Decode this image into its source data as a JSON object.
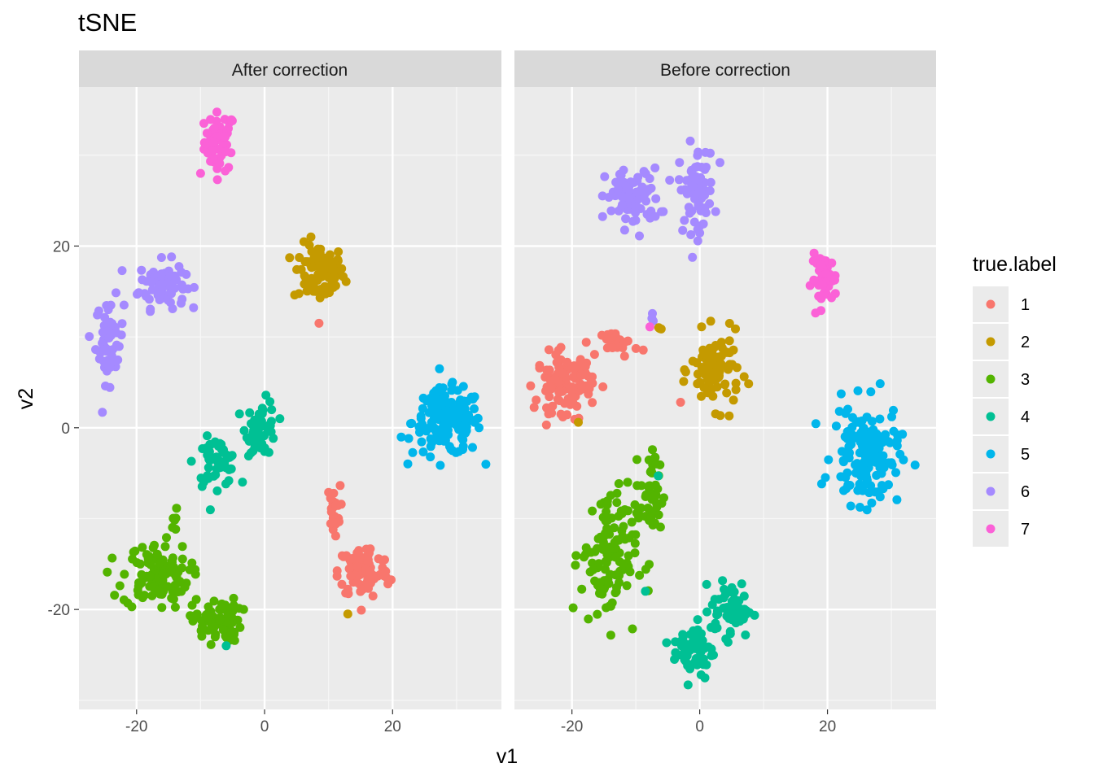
{
  "chart_data": {
    "type": "scatter",
    "title": "tSNE",
    "xlabel": "v1",
    "ylabel": "v2",
    "xlim": [
      -29,
      37
    ],
    "ylim": [
      -31,
      37.5
    ],
    "xticks": [
      -20,
      0,
      20
    ],
    "yticks": [
      -20,
      0,
      20
    ],
    "xtick_labels": [
      "-20",
      "0",
      "20"
    ],
    "ytick_labels": [
      "-20",
      "0",
      "20"
    ],
    "grid": true,
    "legend": {
      "title": "true.label",
      "position": "right",
      "entries": [
        {
          "label": "1",
          "color": "#F8766D"
        },
        {
          "label": "2",
          "color": "#C49A00"
        },
        {
          "label": "3",
          "color": "#53B400"
        },
        {
          "label": "4",
          "color": "#00C094"
        },
        {
          "label": "5",
          "color": "#00B6EB"
        },
        {
          "label": "6",
          "color": "#A58AFF"
        },
        {
          "label": "7",
          "color": "#FB61D7"
        }
      ]
    },
    "facets": [
      {
        "name": "After correction",
        "clusters": [
          {
            "label": "7",
            "cx": -7,
            "cy": 31.5,
            "sx": 1.2,
            "sy": 1.6,
            "n": 60
          },
          {
            "label": "7",
            "cx": -10,
            "cy": 28,
            "sx": 0,
            "sy": 0,
            "n": 1
          },
          {
            "label": "2",
            "cx": 8.5,
            "cy": 17,
            "sx": 2,
            "sy": 1.6,
            "n": 90
          },
          {
            "label": "6",
            "cx": -16,
            "cy": 15.8,
            "sx": 1.8,
            "sy": 1.3,
            "n": 75
          },
          {
            "label": "6",
            "cx": -24.2,
            "cy": 9.5,
            "sx": 1.1,
            "sy": 2.3,
            "n": 60
          },
          {
            "label": "5",
            "cx": 28.5,
            "cy": 0.6,
            "sx": 2.7,
            "sy": 1.8,
            "n": 160
          },
          {
            "label": "4",
            "cx": -0.5,
            "cy": 0,
            "sx": 1.2,
            "sy": 1.5,
            "n": 55
          },
          {
            "label": "4",
            "cx": -7.5,
            "cy": -3.8,
            "sx": 1.7,
            "sy": 1.3,
            "n": 55
          },
          {
            "label": "1",
            "cx": 10.8,
            "cy": -9,
            "sx": 0.5,
            "sy": 1.3,
            "n": 25
          },
          {
            "label": "1",
            "cx": 15.5,
            "cy": -15.8,
            "sx": 2,
            "sy": 1.5,
            "n": 90
          },
          {
            "label": "3",
            "cx": -17,
            "cy": -16.3,
            "sx": 2.6,
            "sy": 1.8,
            "n": 110
          },
          {
            "label": "3",
            "cx": -7.5,
            "cy": -21.2,
            "sx": 1.9,
            "sy": 1.2,
            "n": 70
          },
          {
            "label": "3",
            "cx": -14,
            "cy": -11,
            "sx": 0.3,
            "sy": 1,
            "n": 6
          },
          {
            "label": "4",
            "cx": -6,
            "cy": -24,
            "sx": 0,
            "sy": 0,
            "n": 1
          },
          {
            "label": "2",
            "cx": 13,
            "cy": -20.5,
            "sx": 0,
            "sy": 0,
            "n": 1
          },
          {
            "label": "1",
            "cx": 8.5,
            "cy": 11.5,
            "sx": 0,
            "sy": 0,
            "n": 1
          }
        ]
      },
      {
        "name": "Before correction",
        "clusters": [
          {
            "label": "6",
            "cx": -10.5,
            "cy": 25.3,
            "sx": 2.1,
            "sy": 1.6,
            "n": 80
          },
          {
            "label": "6",
            "cx": -0.5,
            "cy": 26.3,
            "sx": 1.4,
            "sy": 2.4,
            "n": 70
          },
          {
            "label": "7",
            "cx": 19.5,
            "cy": 16.3,
            "sx": 1,
            "sy": 1.3,
            "n": 50
          },
          {
            "label": "6",
            "cx": -7.5,
            "cy": 12.2,
            "sx": 0.2,
            "sy": 0.3,
            "n": 3
          },
          {
            "label": "7",
            "cx": -7.8,
            "cy": 11.1,
            "sx": 0,
            "sy": 0,
            "n": 1
          },
          {
            "label": "2",
            "cx": -6,
            "cy": 10.6,
            "sx": 0.3,
            "sy": 0.2,
            "n": 3
          },
          {
            "label": "1",
            "cx": -12.5,
            "cy": 9.3,
            "sx": 1.4,
            "sy": 0.7,
            "n": 25
          },
          {
            "label": "1",
            "cx": -21.2,
            "cy": 5,
            "sx": 2.2,
            "sy": 1.6,
            "n": 110
          },
          {
            "label": "1",
            "cx": -19.2,
            "cy": 1,
            "sx": 0.2,
            "sy": 0.2,
            "n": 2
          },
          {
            "label": "2",
            "cx": -19,
            "cy": 0.6,
            "sx": 0,
            "sy": 0,
            "n": 1
          },
          {
            "label": "1",
            "cx": -3,
            "cy": 2.8,
            "sx": 0,
            "sy": 0,
            "n": 1
          },
          {
            "label": "2",
            "cx": 2.5,
            "cy": 6.3,
            "sx": 1.9,
            "sy": 2,
            "n": 90
          },
          {
            "label": "5",
            "cx": 26,
            "cy": -3,
            "sx": 2.6,
            "sy": 2.7,
            "n": 150
          },
          {
            "label": "3",
            "cx": -14.2,
            "cy": -14,
            "sx": 2.2,
            "sy": 3.8,
            "n": 120
          },
          {
            "label": "3",
            "cx": -7.5,
            "cy": -7.5,
            "sx": 0.9,
            "sy": 2.5,
            "n": 40
          },
          {
            "label": "4",
            "cx": -6.5,
            "cy": -5.3,
            "sx": 0,
            "sy": 0,
            "n": 1
          },
          {
            "label": "4",
            "cx": -8.5,
            "cy": -18,
            "sx": 0,
            "sy": 0,
            "n": 1
          },
          {
            "label": "4",
            "cx": 5,
            "cy": -20,
            "sx": 1.6,
            "sy": 1.5,
            "n": 60
          },
          {
            "label": "4",
            "cx": -1,
            "cy": -24.5,
            "sx": 1.6,
            "sy": 1.6,
            "n": 60
          }
        ]
      }
    ]
  }
}
